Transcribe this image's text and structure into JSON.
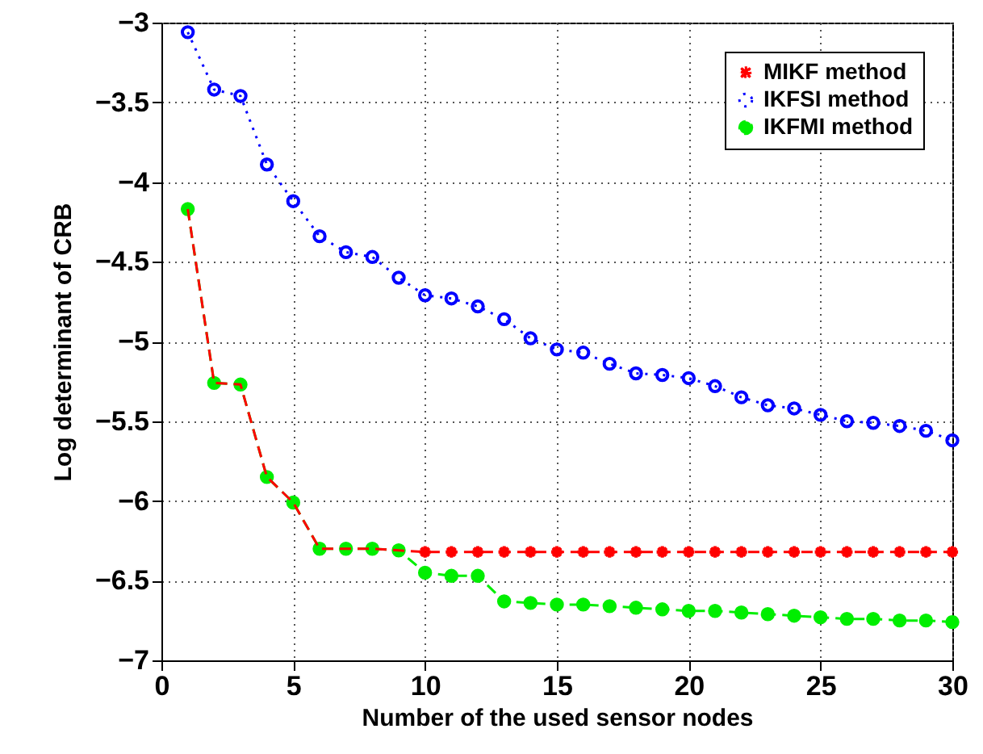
{
  "chart_data": {
    "type": "line",
    "xlabel": "Number of the used sensor nodes",
    "ylabel": "Log determinant of CRB",
    "x": [
      1,
      2,
      3,
      4,
      5,
      6,
      7,
      8,
      9,
      10,
      11,
      12,
      13,
      14,
      15,
      16,
      17,
      18,
      19,
      20,
      21,
      22,
      23,
      24,
      25,
      26,
      27,
      28,
      29,
      30
    ],
    "series": [
      {
        "name": "MIKF method",
        "color": "#ff0000",
        "marker": "star",
        "line_style": "dashed",
        "values": [
          -4.17,
          -5.26,
          -5.27,
          -5.85,
          -6.01,
          -6.3,
          -6.3,
          -6.3,
          -6.31,
          -6.32,
          -6.32,
          -6.32,
          -6.32,
          -6.32,
          -6.32,
          -6.32,
          -6.32,
          -6.32,
          -6.32,
          -6.32,
          -6.32,
          -6.32,
          -6.32,
          -6.32,
          -6.32,
          -6.32,
          -6.32,
          -6.32,
          -6.32,
          -6.32
        ]
      },
      {
        "name": "IKFSI method",
        "color": "#0000ff",
        "marker": "circle",
        "line_style": "dotted",
        "values": [
          -3.06,
          -3.42,
          -3.46,
          -3.89,
          -4.12,
          -4.34,
          -4.44,
          -4.47,
          -4.6,
          -4.71,
          -4.73,
          -4.78,
          -4.86,
          -4.98,
          -5.05,
          -5.07,
          -5.14,
          -5.2,
          -5.21,
          -5.23,
          -5.28,
          -5.35,
          -5.4,
          -5.42,
          -5.46,
          -5.5,
          -5.51,
          -5.53,
          -5.56,
          -5.62
        ]
      },
      {
        "name": "IKFMI method",
        "color": "#00ee00",
        "marker": "circle",
        "line_style": "dashed",
        "values": [
          -4.17,
          -5.26,
          -5.27,
          -5.85,
          -6.01,
          -6.3,
          -6.3,
          -6.3,
          -6.31,
          -6.45,
          -6.47,
          -6.47,
          -6.63,
          -6.64,
          -6.65,
          -6.65,
          -6.66,
          -6.67,
          -6.68,
          -6.69,
          -6.69,
          -6.7,
          -6.71,
          -6.72,
          -6.73,
          -6.74,
          -6.74,
          -6.75,
          -6.75,
          -6.76
        ]
      }
    ],
    "xlim": [
      0,
      30
    ],
    "xticks": [
      0,
      5,
      10,
      15,
      20,
      25,
      30
    ],
    "ylim": [
      -7,
      -3
    ],
    "yticks": [
      -7,
      -6.5,
      -6,
      -5.5,
      -5,
      -4.5,
      -4,
      -3.5,
      -3
    ],
    "grid": true,
    "legend": "top right"
  }
}
